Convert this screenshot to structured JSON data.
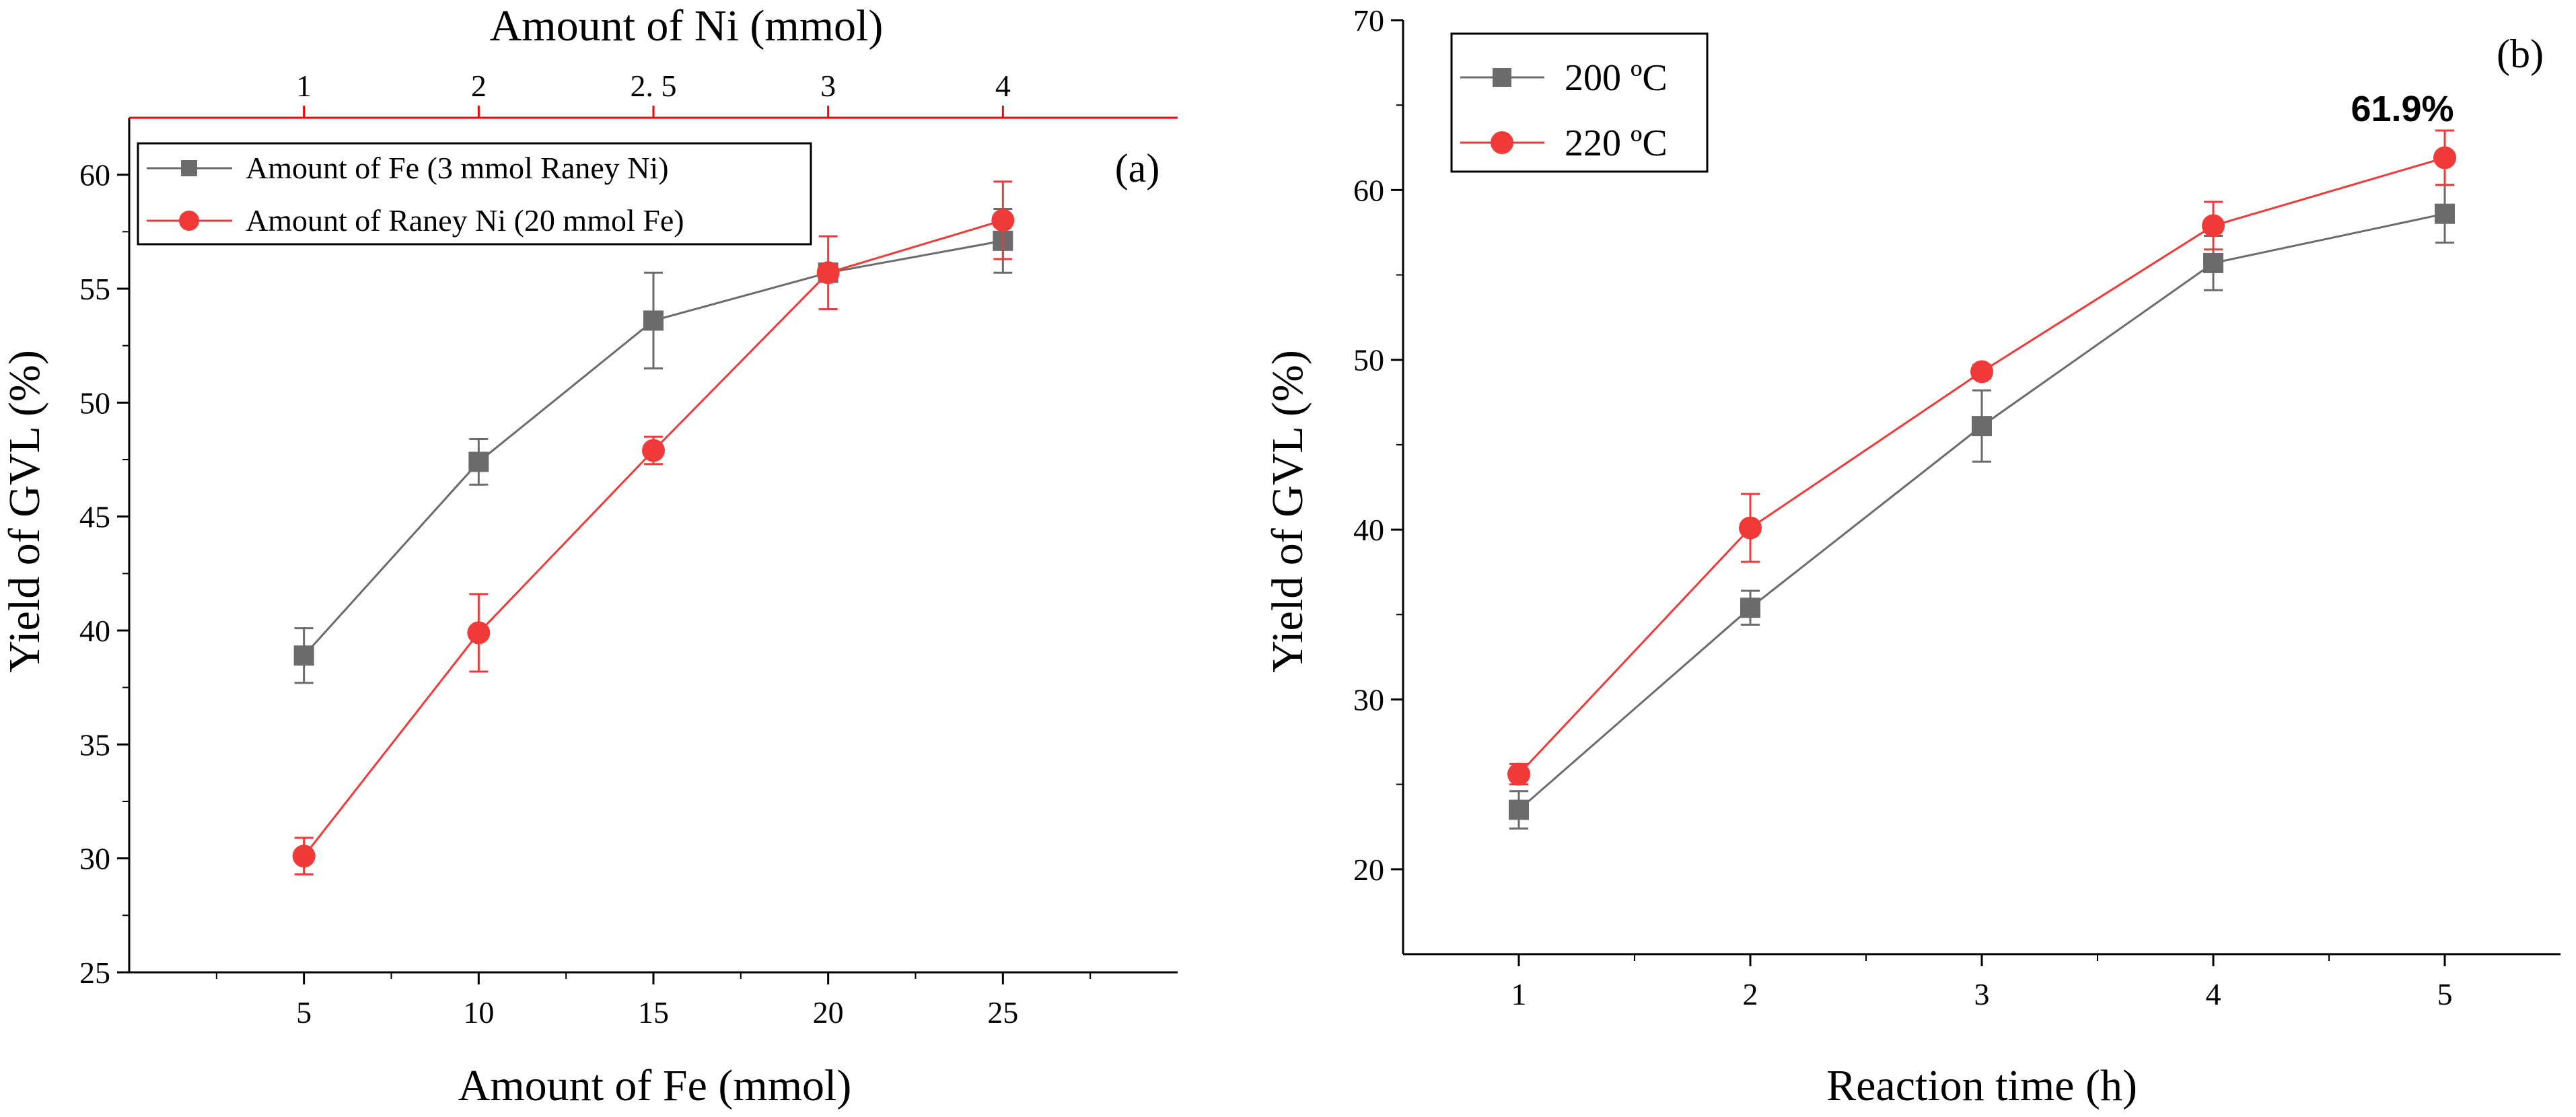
{
  "chart_data": [
    {
      "panel": "(a)",
      "type": "line",
      "x": [
        5,
        10,
        15,
        20,
        25
      ],
      "x_ticks": [
        5,
        10,
        15,
        20,
        25
      ],
      "xlabel": "Amount of Fe (mmol)",
      "xlim": [
        0,
        30
      ],
      "x2_ticks": [
        "1",
        "2",
        "2. 5",
        "3",
        "4"
      ],
      "x2label": "Amount of Ni (mmol)",
      "ylabel": "Yield of GVL (%)",
      "ylim": [
        25,
        62.5
      ],
      "y_ticks": [
        25,
        30,
        35,
        40,
        45,
        50,
        55,
        60
      ],
      "series": [
        {
          "name": "Amount of Fe (3 mmol Raney Ni)",
          "values": [
            38.9,
            47.4,
            53.6,
            55.7,
            57.1
          ],
          "errors": [
            1.2,
            1.0,
            2.1,
            0.4,
            1.4
          ],
          "color": "#6b6b6b",
          "marker": "square"
        },
        {
          "name": "Amount of Raney Ni (20 mmol Fe)",
          "values": [
            30.1,
            39.9,
            47.9,
            55.7,
            58.0
          ],
          "errors": [
            0.8,
            1.7,
            0.6,
            1.6,
            1.7
          ],
          "color": "#f03a3a",
          "marker": "circle"
        }
      ],
      "legend": "top-left"
    },
    {
      "panel": "(b)",
      "type": "line",
      "x": [
        1,
        2,
        3,
        4,
        5
      ],
      "x_ticks": [
        1,
        2,
        3,
        4,
        5
      ],
      "xlabel": "Reaction time (h)",
      "xlim": [
        0.5,
        5.5
      ],
      "ylabel": "Yield of GVL (%)",
      "ylim": [
        15,
        70
      ],
      "y_ticks": [
        20,
        30,
        40,
        50,
        60,
        70
      ],
      "series": [
        {
          "name": "200 ºC",
          "values": [
            23.5,
            35.4,
            46.1,
            55.7,
            58.6
          ],
          "errors": [
            1.1,
            1.0,
            2.1,
            1.6,
            1.7
          ],
          "color": "#6b6b6b",
          "marker": "square"
        },
        {
          "name": "220 ºC",
          "values": [
            25.6,
            40.1,
            49.3,
            57.9,
            61.9
          ],
          "errors": [
            0.6,
            2.0,
            0.4,
            1.4,
            1.6
          ],
          "color": "#f03a3a",
          "marker": "circle"
        }
      ],
      "annotation": "61.9%",
      "legend": "top-left"
    }
  ]
}
